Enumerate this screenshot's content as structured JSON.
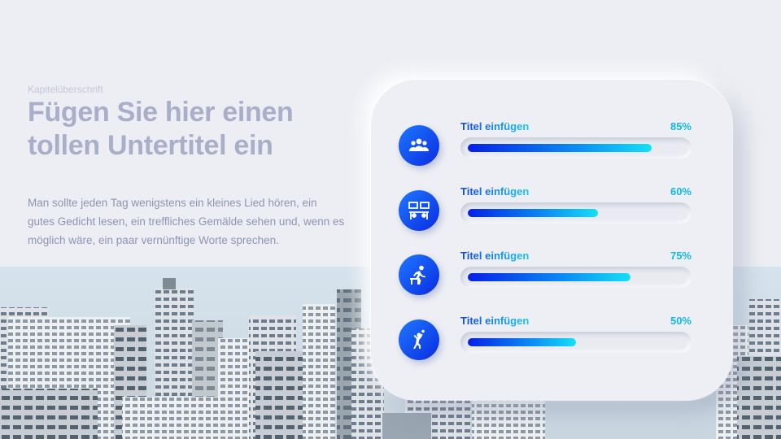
{
  "header": {
    "kicker": "Kapitelüberschrift",
    "headline": "Fügen Sie hier einen tollen Untertitel ein",
    "body": "Man sollte jeden Tag wenigstens ein kleines Lied hören, ein gutes Gedicht lesen, ein treffliches Gemälde sehen und, wenn es möglich wäre, ein paar vernünftige Worte sprechen."
  },
  "progress": [
    {
      "label": "Titel einfügen",
      "percent_text": "85%",
      "value": 0.85,
      "icon": "team-icon"
    },
    {
      "label": "Titel einfügen",
      "percent_text": "60%",
      "value": 0.6,
      "icon": "meeting-icon"
    },
    {
      "label": "Titel einfügen",
      "percent_text": "75%",
      "value": 0.75,
      "icon": "hurdle-runner-icon"
    },
    {
      "label": "Titel einfügen",
      "percent_text": "50%",
      "value": 0.5,
      "icon": "juggler-icon"
    }
  ],
  "colors": {
    "accent_start": "#0620e6",
    "accent_end": "#14e0f5",
    "headline": "#a9afc9",
    "body": "#8e95b4"
  }
}
